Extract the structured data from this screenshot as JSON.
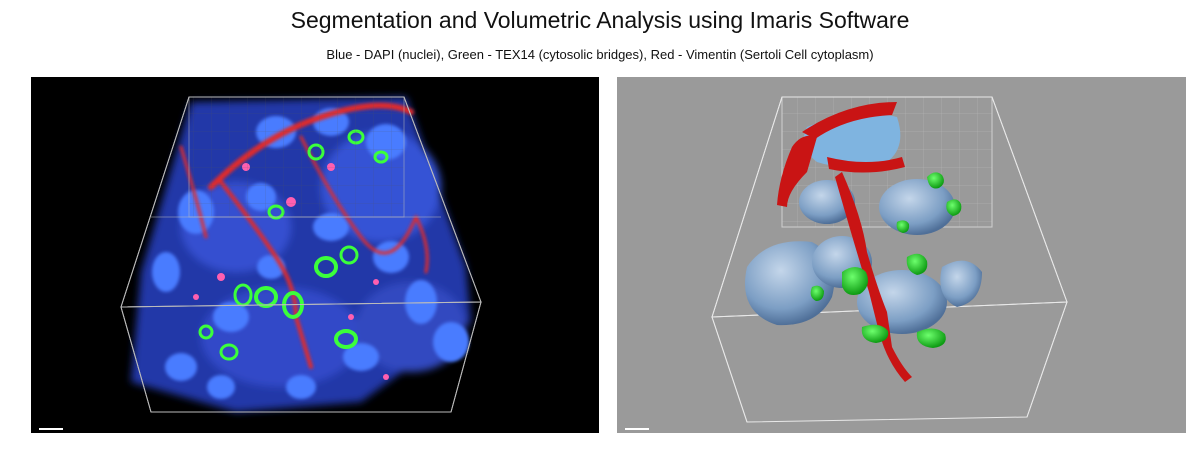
{
  "header": {
    "title": "Segmentation and Volumetric Analysis using Imaris Software",
    "subtitle": "Blue - DAPI (nuclei), Green - TEX14 (cytosolic bridges), Red - Vimentin (Sertoli Cell cytoplasm)"
  },
  "colors": {
    "nuclei_raw": "#3b5fe0",
    "bridges": "#22cc22",
    "sertoli": "#d41a1a",
    "nuclei_surface": "#8fb0d4",
    "left_background": "#000000",
    "right_background": "#9a9a9a"
  },
  "panels": {
    "left": {
      "description_icon": "fluorescence-volume"
    },
    "right": {
      "description_icon": "segmented-surfaces"
    }
  }
}
